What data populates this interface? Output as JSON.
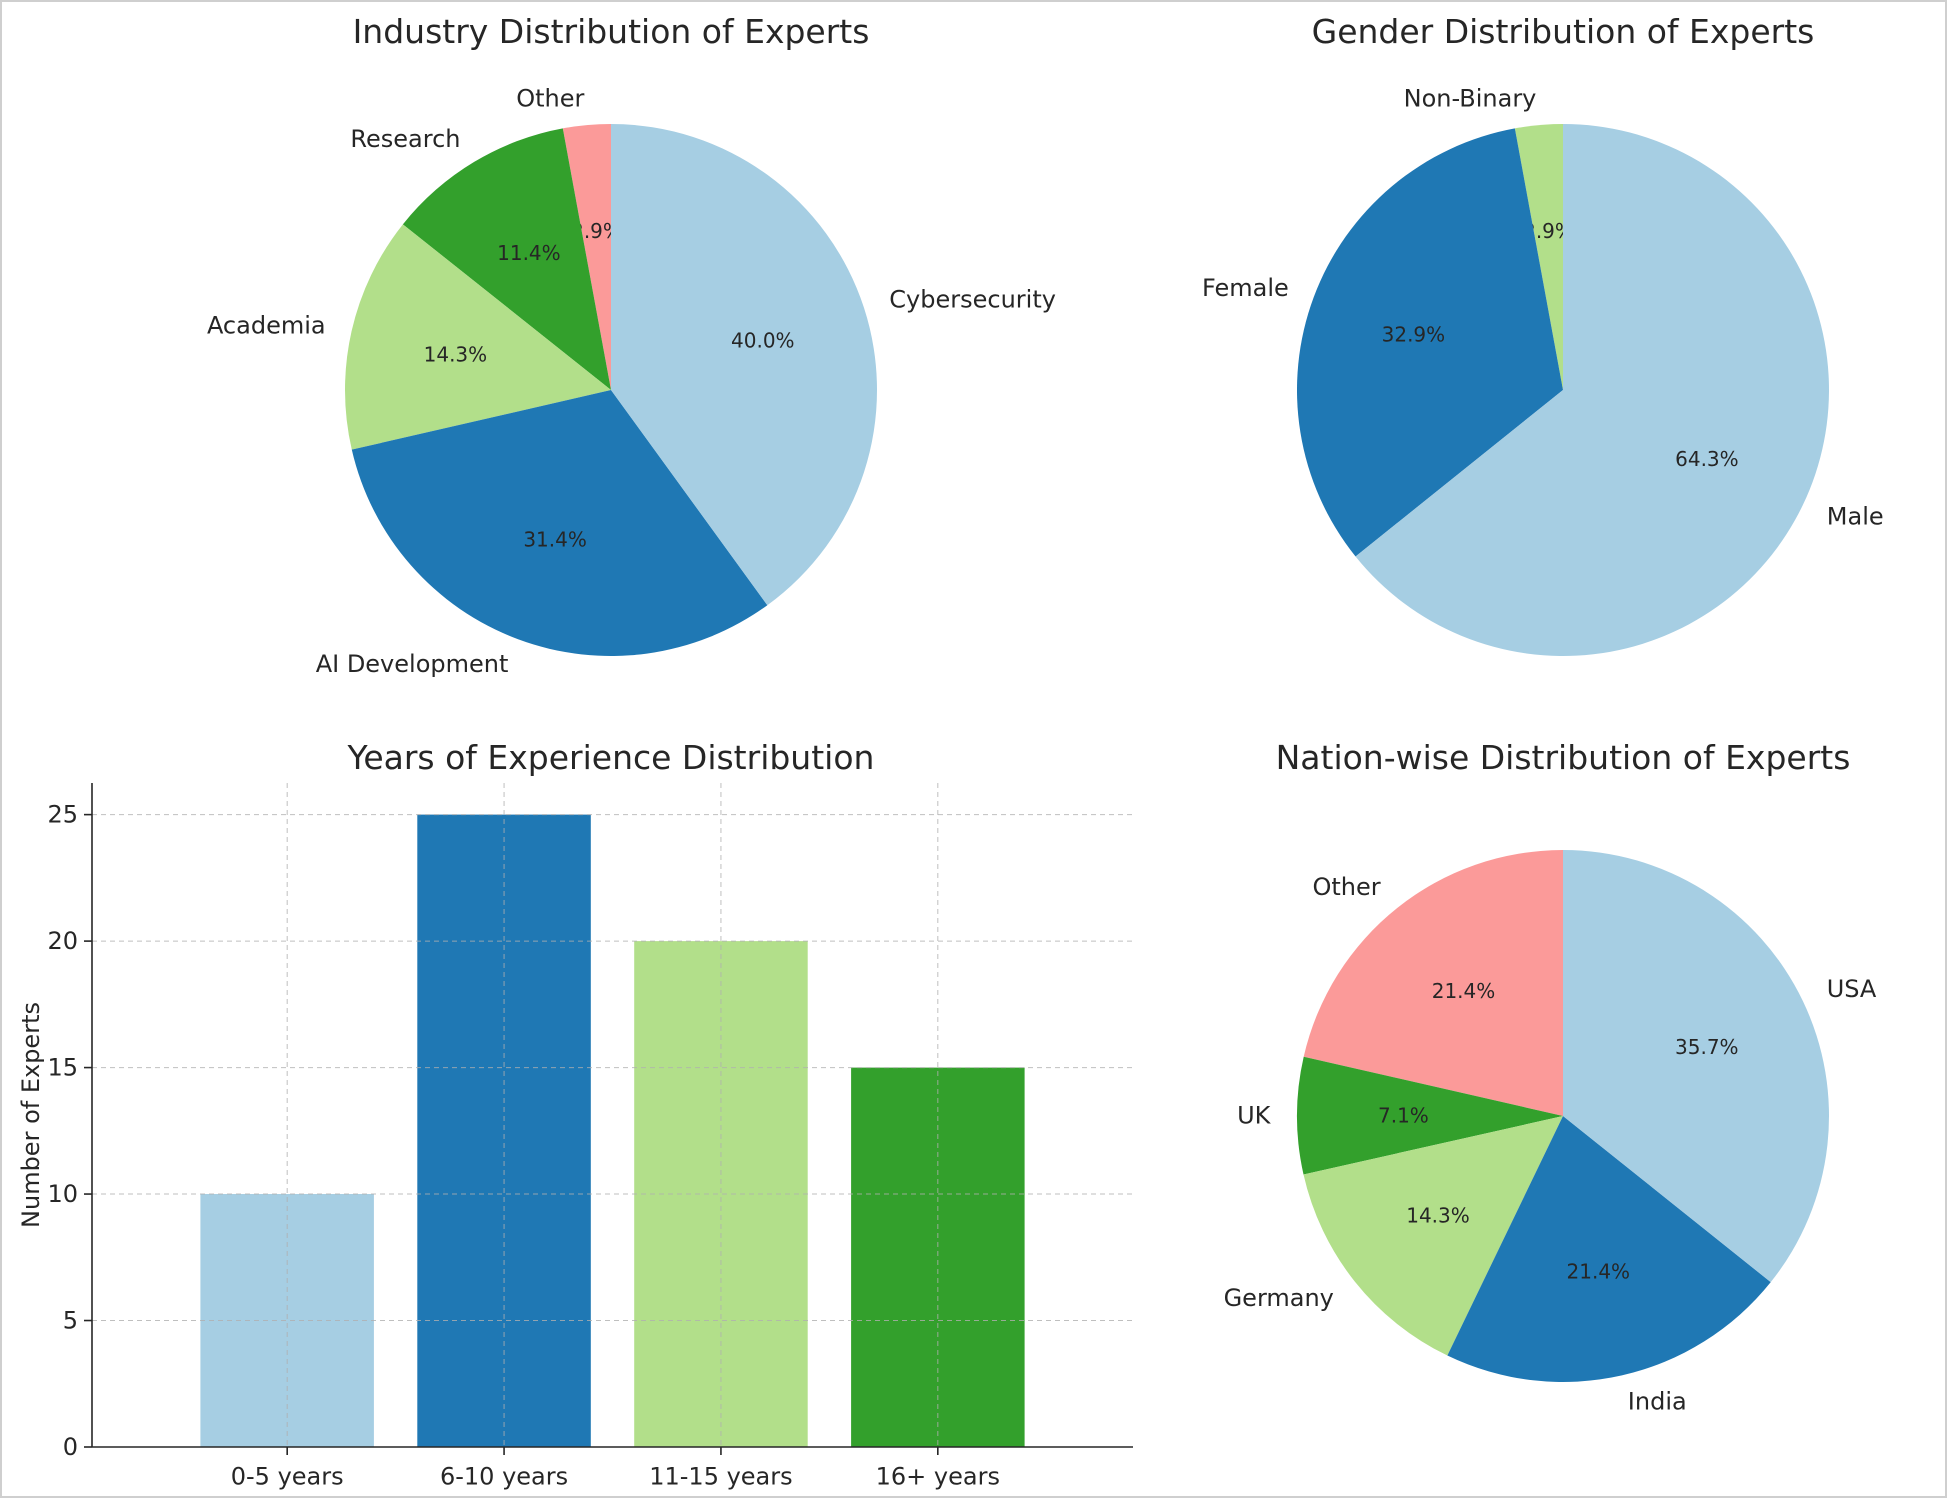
{
  "chart_data": [
    {
      "type": "pie",
      "title": "Industry Distribution of Experts",
      "start_angle": 90,
      "direction": "counterclockwise",
      "slices": [
        {
          "label": "Other",
          "value": 2.9,
          "pct": "2.9%",
          "color": "#fb9a99"
        },
        {
          "label": "Research",
          "value": 11.4,
          "pct": "11.4%",
          "color": "#33a02c"
        },
        {
          "label": "Academia",
          "value": 14.3,
          "pct": "14.3%",
          "color": "#b2df8a"
        },
        {
          "label": "AI Development",
          "value": 31.4,
          "pct": "31.4%",
          "color": "#1f78b4"
        },
        {
          "label": "Cybersecurity",
          "value": 40.0,
          "pct": "40.0%",
          "color": "#a6cee3"
        }
      ]
    },
    {
      "type": "pie",
      "title": "Gender Distribution of Experts",
      "start_angle": 90,
      "direction": "counterclockwise",
      "slices": [
        {
          "label": "Non-Binary",
          "value": 2.9,
          "pct": "2.9%",
          "color": "#b2df8a"
        },
        {
          "label": "Female",
          "value": 32.9,
          "pct": "32.9%",
          "color": "#1f78b4"
        },
        {
          "label": "Male",
          "value": 64.3,
          "pct": "64.3%",
          "color": "#a6cee3"
        }
      ]
    },
    {
      "type": "bar",
      "title": "Years of Experience Distribution",
      "categories": [
        "0-5 years",
        "6-10 years",
        "11-15 years",
        "16+ years"
      ],
      "values": [
        10,
        25,
        20,
        15
      ],
      "colors": [
        "#a6cee3",
        "#1f78b4",
        "#b2df8a",
        "#33a02c"
      ],
      "xlabel": "",
      "ylabel": "Number of Experts",
      "ylim": [
        0,
        26.25
      ],
      "yticks": [
        0,
        5,
        10,
        15,
        20,
        25
      ],
      "grid": true
    },
    {
      "type": "pie",
      "title": "Nation-wise Distribution of Experts",
      "start_angle": 90,
      "direction": "counterclockwise",
      "slices": [
        {
          "label": "Other",
          "value": 21.4,
          "pct": "21.4%",
          "color": "#fb9a99"
        },
        {
          "label": "UK",
          "value": 7.1,
          "pct": "7.1%",
          "color": "#33a02c"
        },
        {
          "label": "Germany",
          "value": 14.3,
          "pct": "14.3%",
          "color": "#b2df8a"
        },
        {
          "label": "India",
          "value": 21.4,
          "pct": "21.4%",
          "color": "#1f78b4"
        },
        {
          "label": "USA",
          "value": 35.7,
          "pct": "35.7%",
          "color": "#a6cee3"
        }
      ]
    }
  ]
}
